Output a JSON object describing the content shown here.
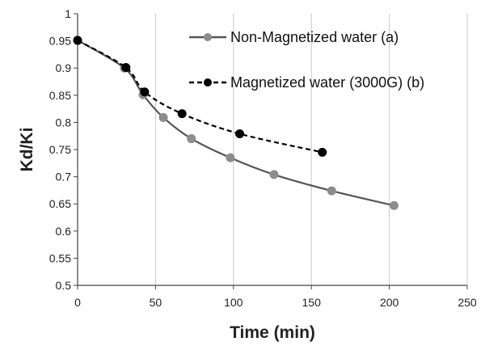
{
  "chart_data": {
    "type": "line",
    "title": "",
    "xlabel": "Time (min)",
    "ylabel": "Kd/Ki",
    "xlim": [
      0,
      250
    ],
    "ylim": [
      0.5,
      1
    ],
    "x_ticks": [
      0,
      50,
      100,
      150,
      200,
      250
    ],
    "y_ticks": [
      0.5,
      0.55,
      0.6,
      0.65,
      0.7,
      0.75,
      0.8,
      0.85,
      0.9,
      0.95,
      1
    ],
    "x_tick_labels": [
      "0",
      "50",
      "100",
      "150",
      "200",
      "250"
    ],
    "y_tick_labels": [
      "0.5",
      "0.55",
      "0.6",
      "0.65",
      "0.7",
      "0.75",
      "0.8",
      "0.85",
      "0.9",
      "0.95",
      "1"
    ],
    "grid": "vertical",
    "legend_position": "top-right",
    "series": [
      {
        "name": "Non-Magnetized water (a)",
        "line_style": "solid",
        "line_color": "#555555",
        "marker_color": "#8c8c8c",
        "x": [
          0,
          30,
          42,
          55,
          73,
          98,
          126,
          163,
          203
        ],
        "y": [
          0.951,
          0.9,
          0.851,
          0.809,
          0.77,
          0.735,
          0.704,
          0.674,
          0.647
        ]
      },
      {
        "name": "Magnetized water (3000G) (b)",
        "line_style": "dashed",
        "line_color": "#000000",
        "marker_color": "#000000",
        "x": [
          0,
          31,
          43,
          67,
          104,
          157
        ],
        "y": [
          0.951,
          0.901,
          0.856,
          0.816,
          0.779,
          0.745
        ]
      }
    ]
  }
}
